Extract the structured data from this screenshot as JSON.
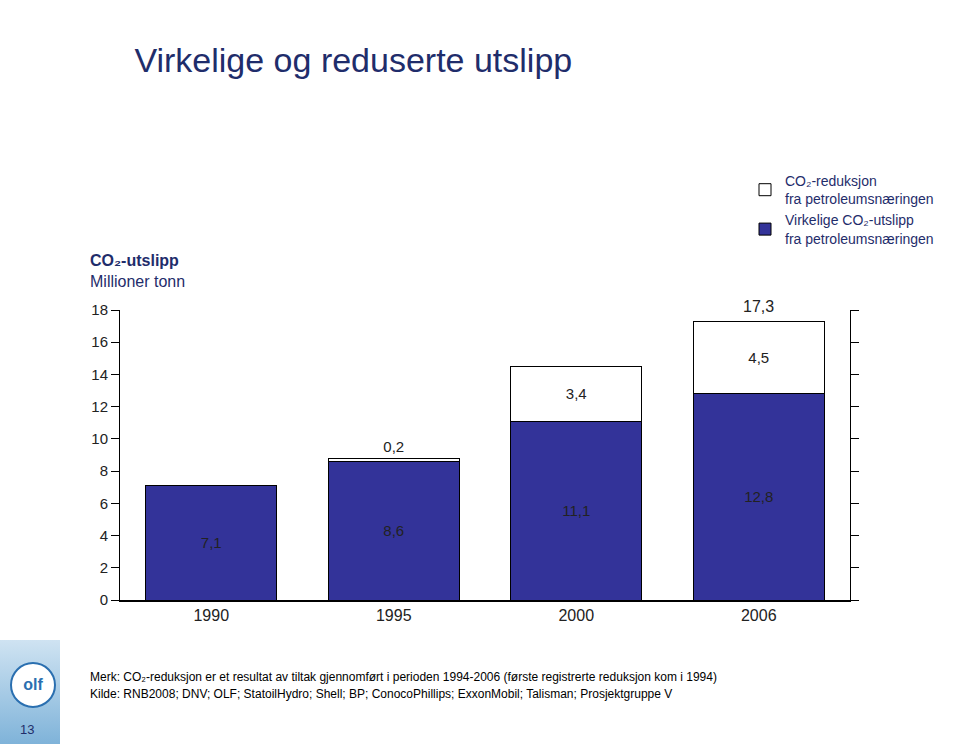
{
  "chart_data": {
    "type": "bar",
    "stacked": true,
    "title": "Virkelige og reduserte utslipp",
    "ylabel": "CO₂-utslipp",
    "yunit": "Millioner tonn",
    "categories": [
      "1990",
      "1995",
      "2000",
      "2006"
    ],
    "series": [
      {
        "name": "Virkelige CO₂-utslipp fra petroleumsnæringen",
        "color": "#333399",
        "values": [
          7.1,
          8.6,
          11.1,
          12.8
        ],
        "value_labels": [
          "7,1",
          "8,6",
          "11,1",
          "12,8"
        ]
      },
      {
        "name": "CO₂-reduksjon fra petroleumsnæringen",
        "color": "#ffffff",
        "values": [
          null,
          0.2,
          3.4,
          4.5
        ],
        "value_labels": [
          null,
          "0,2",
          "3,4",
          "4,5"
        ]
      }
    ],
    "annotations": [
      {
        "text": "17,3",
        "x": "2006",
        "y": 17.3
      }
    ],
    "ylim": [
      0,
      18
    ],
    "yticks": [
      0,
      2,
      4,
      6,
      8,
      10,
      12,
      14,
      16,
      18
    ],
    "grid": false,
    "data_labels": true,
    "legend": "top right",
    "notes": [
      "Merk: CO₂-reduksjon er et resultat av tiltak gjennomført i perioden 1994-2006 (første registrerte reduksjon kom i 1994)",
      "Kilde: RNB2008; DNV; OLF; StatoilHydro; Shell; BP; ConocoPhillips; ExxonMobil; Talisman; Prosjektgruppe V"
    ]
  },
  "page": {
    "logo": "olf",
    "page_number": "13"
  }
}
